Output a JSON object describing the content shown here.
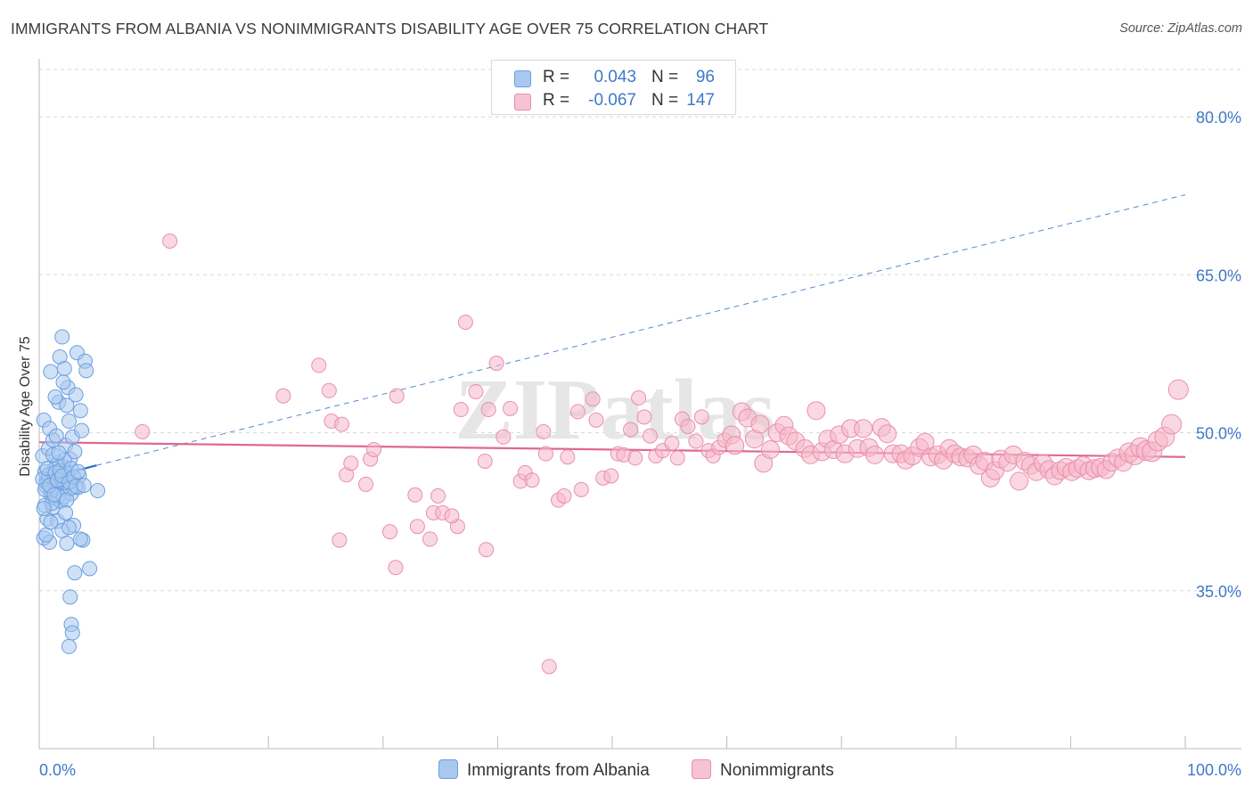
{
  "title": "IMMIGRANTS FROM ALBANIA VS NONIMMIGRANTS DISABILITY AGE OVER 75 CORRELATION CHART",
  "source": "Source: ZipAtlas.com",
  "watermark": "ZIPatlas",
  "colors": {
    "blue_fill": "#a9c8ef",
    "blue_stroke": "#6a9fe0",
    "blue_line": "#2a6cc4",
    "pink_fill": "#f5b8cb",
    "pink_stroke": "#e98fad",
    "pink_line": "#e06890",
    "accent_text": "#3f78c8"
  },
  "stats": {
    "blue": {
      "r_label": "R =",
      "r_value": "0.043",
      "n_label": "N =",
      "n_value": "96"
    },
    "pink": {
      "r_label": "R =",
      "r_value": "-0.067",
      "n_label": "N =",
      "n_value": "147"
    }
  },
  "legend": {
    "blue_label": "Immigrants from Albania",
    "pink_label": "Nonimmigrants"
  },
  "chart_data": {
    "type": "scatter",
    "title": "IMMIGRANTS FROM ALBANIA VS NONIMMIGRANTS DISABILITY AGE OVER 75 CORRELATION CHART",
    "xlabel": "",
    "ylabel": "Disability Age Over 75",
    "xlim": [
      0,
      100
    ],
    "ylim": [
      20,
      85
    ],
    "x_tick_labels": [
      "0.0%",
      "100.0%"
    ],
    "y_ticks": [
      35,
      50,
      65,
      80
    ],
    "y_tick_labels": [
      "35.0%",
      "50.0%",
      "65.0%",
      "80.0%"
    ],
    "grid": true,
    "series": [
      {
        "name": "Immigrants from Albania",
        "color": "blue",
        "trend": {
          "x": [
            0,
            5
          ],
          "y": [
            45.5,
            46.9
          ],
          "dashed_extension": {
            "x": [
              5,
              100
            ],
            "y": [
              46.9,
              72.6
            ]
          }
        },
        "points": [
          [
            0.3,
            47.8
          ],
          [
            0.4,
            51.2
          ],
          [
            0.5,
            46.3
          ],
          [
            0.6,
            44.9
          ],
          [
            0.5,
            43.1
          ],
          [
            0.7,
            41.8
          ],
          [
            0.4,
            40.0
          ],
          [
            0.8,
            48.5
          ],
          [
            0.9,
            50.4
          ],
          [
            1.0,
            44.2
          ],
          [
            1.1,
            45.7
          ],
          [
            1.2,
            42.9
          ],
          [
            0.9,
            39.6
          ],
          [
            1.3,
            46.5
          ],
          [
            1.4,
            43.8
          ],
          [
            1.5,
            45.1
          ],
          [
            1.2,
            49.3
          ],
          [
            1.6,
            47.2
          ],
          [
            1.0,
            55.8
          ],
          [
            1.7,
            52.9
          ],
          [
            1.8,
            45.0
          ],
          [
            1.9,
            43.5
          ],
          [
            2.0,
            44.6
          ],
          [
            1.6,
            41.6
          ],
          [
            2.1,
            46.8
          ],
          [
            2.2,
            45.4
          ],
          [
            1.8,
            57.2
          ],
          [
            2.3,
            48.8
          ],
          [
            2.4,
            52.6
          ],
          [
            2.0,
            59.1
          ],
          [
            2.5,
            54.3
          ],
          [
            2.6,
            51.1
          ],
          [
            2.2,
            56.1
          ],
          [
            2.7,
            47.5
          ],
          [
            2.8,
            44.2
          ],
          [
            2.9,
            49.6
          ],
          [
            2.4,
            39.5
          ],
          [
            3.0,
            41.2
          ],
          [
            2.7,
            34.4
          ],
          [
            2.8,
            31.8
          ],
          [
            2.6,
            29.7
          ],
          [
            3.1,
            36.7
          ],
          [
            3.2,
            53.6
          ],
          [
            3.4,
            44.8
          ],
          [
            3.5,
            45.9
          ],
          [
            3.6,
            52.1
          ],
          [
            3.7,
            50.2
          ],
          [
            3.3,
            57.6
          ],
          [
            3.8,
            39.8
          ],
          [
            4.0,
            56.8
          ],
          [
            4.1,
            55.9
          ],
          [
            4.4,
            37.1
          ],
          [
            5.1,
            44.5
          ],
          [
            0.6,
            45.3
          ],
          [
            0.8,
            46.0
          ],
          [
            1.1,
            44.4
          ],
          [
            1.3,
            45.8
          ],
          [
            1.5,
            46.9
          ],
          [
            1.7,
            44.0
          ],
          [
            1.9,
            45.6
          ],
          [
            2.1,
            43.9
          ],
          [
            2.3,
            45.2
          ],
          [
            2.5,
            46.1
          ],
          [
            2.7,
            44.7
          ],
          [
            0.3,
            45.6
          ],
          [
            0.5,
            44.6
          ],
          [
            0.7,
            46.6
          ],
          [
            0.9,
            45.0
          ],
          [
            1.1,
            43.3
          ],
          [
            1.3,
            44.1
          ],
          [
            1.4,
            46.2
          ],
          [
            1.6,
            45.5
          ],
          [
            1.8,
            46.4
          ],
          [
            2.0,
            45.9
          ],
          [
            2.2,
            47.4
          ],
          [
            2.4,
            43.6
          ],
          [
            2.6,
            45.3
          ],
          [
            2.8,
            46.6
          ],
          [
            3.0,
            45.8
          ],
          [
            3.2,
            44.9
          ],
          [
            0.4,
            42.8
          ],
          [
            0.6,
            40.3
          ],
          [
            1.0,
            41.5
          ],
          [
            1.2,
            47.9
          ],
          [
            1.5,
            49.7
          ],
          [
            1.7,
            48.1
          ],
          [
            2.0,
            40.7
          ],
          [
            2.3,
            42.4
          ],
          [
            2.6,
            41.0
          ],
          [
            2.9,
            31.0
          ],
          [
            3.1,
            48.2
          ],
          [
            3.4,
            46.3
          ],
          [
            3.6,
            39.9
          ],
          [
            3.9,
            45.0
          ],
          [
            2.1,
            54.8
          ],
          [
            1.4,
            53.4
          ]
        ]
      },
      {
        "name": "Nonimmigrants",
        "color": "pink",
        "trend": {
          "x": [
            0,
            100
          ],
          "y": [
            49.1,
            47.7
          ]
        },
        "points": [
          [
            9,
            50.1
          ],
          [
            11.4,
            68.2
          ],
          [
            21.3,
            53.5
          ],
          [
            24.4,
            56.4
          ],
          [
            25.5,
            51.1
          ],
          [
            25.3,
            54.0
          ],
          [
            26.4,
            50.8
          ],
          [
            26.2,
            39.8
          ],
          [
            26.8,
            46.0
          ],
          [
            27.2,
            47.1
          ],
          [
            28.5,
            45.1
          ],
          [
            28.9,
            47.5
          ],
          [
            29.2,
            48.4
          ],
          [
            30.6,
            40.6
          ],
          [
            31.1,
            37.2
          ],
          [
            31.2,
            53.5
          ],
          [
            32.8,
            44.1
          ],
          [
            33.0,
            41.1
          ],
          [
            34.1,
            39.9
          ],
          [
            34.4,
            42.4
          ],
          [
            34.8,
            44.0
          ],
          [
            35.2,
            42.4
          ],
          [
            36.5,
            41.1
          ],
          [
            36.8,
            52.2
          ],
          [
            37.2,
            60.5
          ],
          [
            38.1,
            53.9
          ],
          [
            38.9,
            47.3
          ],
          [
            39.0,
            38.9
          ],
          [
            39.2,
            52.2
          ],
          [
            39.9,
            56.6
          ],
          [
            40.5,
            49.6
          ],
          [
            41.1,
            52.3
          ],
          [
            42.0,
            45.4
          ],
          [
            42.4,
            46.2
          ],
          [
            43.0,
            45.5
          ],
          [
            44.0,
            50.1
          ],
          [
            44.2,
            48.0
          ],
          [
            45.3,
            43.6
          ],
          [
            45.8,
            44.0
          ],
          [
            46.1,
            47.7
          ],
          [
            47.0,
            52.0
          ],
          [
            47.3,
            44.6
          ],
          [
            48.3,
            53.2
          ],
          [
            48.6,
            51.2
          ],
          [
            49.2,
            45.7
          ],
          [
            49.9,
            45.9
          ],
          [
            50.5,
            48.0
          ],
          [
            51.0,
            47.9
          ],
          [
            51.6,
            50.3
          ],
          [
            52.3,
            53.3
          ],
          [
            52.8,
            51.5
          ],
          [
            53.3,
            49.7
          ],
          [
            53.8,
            47.8
          ],
          [
            54.4,
            48.3
          ],
          [
            55.2,
            49.0
          ],
          [
            55.7,
            47.6
          ],
          [
            56.1,
            51.3
          ],
          [
            56.6,
            50.6
          ],
          [
            57.3,
            49.2
          ],
          [
            57.8,
            51.5
          ],
          [
            58.4,
            48.3
          ],
          [
            58.8,
            47.8
          ],
          [
            59.3,
            48.6
          ],
          [
            59.8,
            49.3
          ],
          [
            60.4,
            49.8
          ],
          [
            60.7,
            48.8
          ],
          [
            61.3,
            52.0
          ],
          [
            61.8,
            51.4
          ],
          [
            62.4,
            49.4
          ],
          [
            62.9,
            50.8
          ],
          [
            63.2,
            47.1
          ],
          [
            63.8,
            48.4
          ],
          [
            64.4,
            50.0
          ],
          [
            65.0,
            50.7
          ],
          [
            65.4,
            49.7
          ],
          [
            66.0,
            49.2
          ],
          [
            66.8,
            48.5
          ],
          [
            67.3,
            47.9
          ],
          [
            67.8,
            52.1
          ],
          [
            68.3,
            48.2
          ],
          [
            68.8,
            49.4
          ],
          [
            69.3,
            48.4
          ],
          [
            69.8,
            49.8
          ],
          [
            70.3,
            48.0
          ],
          [
            70.8,
            50.4
          ],
          [
            71.4,
            48.5
          ],
          [
            71.9,
            50.4
          ],
          [
            72.4,
            48.6
          ],
          [
            72.9,
            47.9
          ],
          [
            73.5,
            50.5
          ],
          [
            74.0,
            49.9
          ],
          [
            74.5,
            48.0
          ],
          [
            75.2,
            48.0
          ],
          [
            75.6,
            47.4
          ],
          [
            76.2,
            47.8
          ],
          [
            76.8,
            48.6
          ],
          [
            77.3,
            49.1
          ],
          [
            77.8,
            47.7
          ],
          [
            78.4,
            47.9
          ],
          [
            78.9,
            47.4
          ],
          [
            79.4,
            48.5
          ],
          [
            79.9,
            48.0
          ],
          [
            80.4,
            47.7
          ],
          [
            81.0,
            47.6
          ],
          [
            81.5,
            47.9
          ],
          [
            82.0,
            46.9
          ],
          [
            82.5,
            47.3
          ],
          [
            83.0,
            45.7
          ],
          [
            83.4,
            46.4
          ],
          [
            83.9,
            47.5
          ],
          [
            84.5,
            47.2
          ],
          [
            85.0,
            47.9
          ],
          [
            85.5,
            45.4
          ],
          [
            86.0,
            47.3
          ],
          [
            86.5,
            46.9
          ],
          [
            87.0,
            46.3
          ],
          [
            87.6,
            47.1
          ],
          [
            88.1,
            46.5
          ],
          [
            88.6,
            45.9
          ],
          [
            89.1,
            46.4
          ],
          [
            89.6,
            46.7
          ],
          [
            90.1,
            46.3
          ],
          [
            90.6,
            46.6
          ],
          [
            91.1,
            46.9
          ],
          [
            91.6,
            46.4
          ],
          [
            92.1,
            46.6
          ],
          [
            92.6,
            46.7
          ],
          [
            93.1,
            46.5
          ],
          [
            93.6,
            47.2
          ],
          [
            94.1,
            47.6
          ],
          [
            94.6,
            47.2
          ],
          [
            95.1,
            48.1
          ],
          [
            95.6,
            47.9
          ],
          [
            96.1,
            48.6
          ],
          [
            96.6,
            48.3
          ],
          [
            97.1,
            48.2
          ],
          [
            97.6,
            49.2
          ],
          [
            98.2,
            49.6
          ],
          [
            98.8,
            50.8
          ],
          [
            99.4,
            54.1
          ],
          [
            52.0,
            47.6
          ],
          [
            36.0,
            42.1
          ],
          [
            44.5,
            27.8
          ]
        ]
      }
    ]
  }
}
